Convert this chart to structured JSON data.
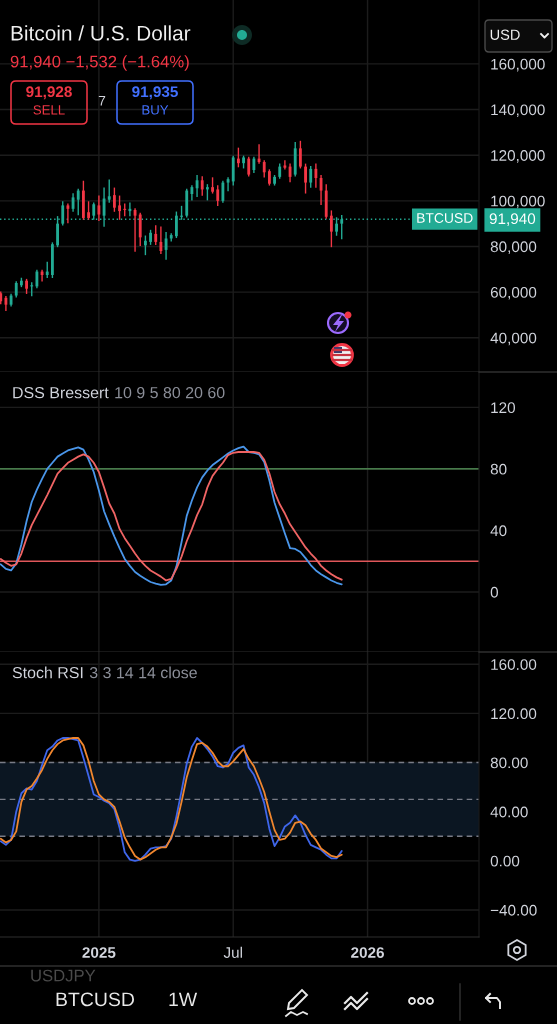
{
  "chart_data": [
    {
      "type": "candlestick",
      "title": "Bitcoin / U.S. Dollar",
      "subtitle": "91,940 −1,532 (−1.64%)",
      "x": [
        "2024-08-26",
        "2024-09-02",
        "2024-09-09",
        "2024-09-16",
        "2024-09-23",
        "2024-09-30",
        "2024-10-07",
        "2024-10-14",
        "2024-10-21",
        "2024-10-28",
        "2024-11-04",
        "2024-11-11",
        "2024-11-18",
        "2024-11-25",
        "2024-12-02",
        "2024-12-09",
        "2024-12-16",
        "2024-12-23",
        "2024-12-30",
        "2025-01-06",
        "2025-01-13",
        "2025-01-20",
        "2025-01-27",
        "2025-02-03",
        "2025-02-10",
        "2025-02-17",
        "2025-02-24",
        "2025-03-03",
        "2025-03-10",
        "2025-03-17",
        "2025-03-24",
        "2025-03-31",
        "2025-04-07",
        "2025-04-14",
        "2025-04-21",
        "2025-04-28",
        "2025-05-05",
        "2025-05-12",
        "2025-05-19",
        "2025-05-26",
        "2025-06-02",
        "2025-06-09",
        "2025-06-16",
        "2025-06-23",
        "2025-06-30",
        "2025-07-07",
        "2025-07-14",
        "2025-07-21",
        "2025-07-28",
        "2025-08-04",
        "2025-08-11",
        "2025-08-18",
        "2025-08-25",
        "2025-09-01",
        "2025-09-08",
        "2025-09-15",
        "2025-09-22",
        "2025-09-29",
        "2025-10-06",
        "2025-10-13",
        "2025-10-20",
        "2025-10-27",
        "2025-11-03",
        "2025-11-10",
        "2025-11-17",
        "2025-11-24",
        "2025-12-01"
      ],
      "ohlc": [
        [
          59500,
          60000,
          55000,
          56000
        ],
        [
          57500,
          58000,
          52000,
          54500
        ],
        [
          54500,
          59000,
          54000,
          58500
        ],
        [
          58500,
          64500,
          58000,
          64000
        ],
        [
          63000,
          66000,
          62500,
          65000
        ],
        [
          65000,
          65500,
          59500,
          61500
        ],
        [
          62500,
          64000,
          58500,
          63000
        ],
        [
          62500,
          69500,
          62000,
          69000
        ],
        [
          69000,
          69500,
          65000,
          67500
        ],
        [
          67500,
          73000,
          66500,
          69000
        ],
        [
          67500,
          81500,
          66500,
          81000
        ],
        [
          80500,
          93000,
          80000,
          90000
        ],
        [
          90000,
          99500,
          89500,
          98000
        ],
        [
          98000,
          98500,
          90500,
          96500
        ],
        [
          96500,
          103000,
          95500,
          101500
        ],
        [
          100500,
          105000,
          94000,
          104500
        ],
        [
          104500,
          108500,
          92000,
          92500
        ],
        [
          95000,
          99500,
          92000,
          92500
        ],
        [
          93500,
          99000,
          92000,
          98500
        ],
        [
          98000,
          102000,
          91500,
          94000
        ],
        [
          93500,
          105500,
          89000,
          101000
        ],
        [
          100500,
          109000,
          99500,
          102000
        ],
        [
          102500,
          105500,
          95500,
          97000
        ],
        [
          98000,
          102000,
          92000,
          95500
        ],
        [
          96500,
          98500,
          93500,
          96000
        ],
        [
          95500,
          99000,
          93500,
          96500
        ],
        [
          96000,
          96500,
          78000,
          93500
        ],
        [
          94000,
          94500,
          80500,
          84000
        ],
        [
          80500,
          84500,
          76500,
          82500
        ],
        [
          82000,
          87000,
          81000,
          86000
        ],
        [
          85500,
          89000,
          81000,
          82000
        ],
        [
          82000,
          88500,
          77000,
          78000
        ],
        [
          78500,
          86000,
          74500,
          83500
        ],
        [
          83500,
          85500,
          82500,
          85000
        ],
        [
          84500,
          95000,
          84000,
          93500
        ],
        [
          93000,
          97500,
          92000,
          93500
        ],
        [
          93500,
          105000,
          93000,
          104500
        ],
        [
          103000,
          106500,
          100500,
          106000
        ],
        [
          105500,
          111000,
          102000,
          109000
        ],
        [
          109000,
          110500,
          102500,
          105000
        ],
        [
          105000,
          107000,
          100500,
          106000
        ],
        [
          106000,
          110000,
          103500,
          104000
        ],
        [
          105000,
          106500,
          98000,
          100000
        ],
        [
          100000,
          108500,
          99500,
          108000
        ],
        [
          108000,
          110000,
          104500,
          109500
        ],
        [
          108500,
          119500,
          107000,
          119000
        ],
        [
          118500,
          123000,
          115000,
          116500
        ],
        [
          116500,
          119500,
          114500,
          119000
        ],
        [
          118500,
          119000,
          111000,
          111500
        ],
        [
          113500,
          119000,
          112500,
          118500
        ],
        [
          118500,
          124500,
          116500,
          117000
        ],
        [
          117000,
          117500,
          110500,
          112500
        ],
        [
          113000,
          113500,
          107000,
          107500
        ],
        [
          107500,
          111000,
          107000,
          110500
        ],
        [
          110500,
          116000,
          110000,
          115000
        ],
        [
          115500,
          117500,
          114000,
          114500
        ],
        [
          115000,
          116000,
          108500,
          110500
        ],
        [
          111500,
          125500,
          111000,
          123000
        ],
        [
          123000,
          126000,
          114500,
          115000
        ],
        [
          115000,
          116000,
          103500,
          108000
        ],
        [
          108000,
          115000,
          106000,
          114000
        ],
        [
          114000,
          116000,
          106000,
          110000
        ],
        [
          110000,
          111000,
          98500,
          104500
        ],
        [
          104500,
          107000,
          92500,
          93000
        ],
        [
          93500,
          95500,
          80000,
          86500
        ],
        [
          86500,
          92500,
          85000,
          90000
        ],
        [
          90000,
          93500,
          83500,
          91940
        ]
      ],
      "xlim": [
        "2024-08-25",
        "2026-06-05"
      ],
      "xticks": [
        {
          "value": "2025-01-06",
          "label": null
        },
        {
          "value": "2025-07-07",
          "label": null
        },
        {
          "value": "2026-01-05",
          "label": null
        }
      ],
      "ylim": [
        25000,
        188000
      ],
      "yticks": [
        {
          "value": 40000,
          "label": "40,000"
        },
        {
          "value": 60000,
          "label": "60,000"
        },
        {
          "value": 80000,
          "label": "80,000"
        },
        {
          "value": 100000,
          "label": "100,000"
        },
        {
          "value": 120000,
          "label": "120,000"
        },
        {
          "value": 140000,
          "label": "140,000"
        },
        {
          "value": 160000,
          "label": "160,000"
        }
      ],
      "grid": true,
      "tick_labels": "y",
      "ref_lines": [
        {
          "axis": "y",
          "value": 91940,
          "label": "BTCUSD",
          "color": "#22ab94",
          "line_style": "dotted"
        }
      ],
      "annotations": [
        "91,928",
        "SELL",
        "7",
        "91,935",
        "BUY",
        "USD",
        "91,940"
      ]
    },
    {
      "type": "line",
      "title": "DSS Bressert",
      "subtitle": "10 9 5 80 20 60",
      "x": [
        "2024-08-26",
        "2024-09-02",
        "2024-09-09",
        "2024-09-16",
        "2024-09-23",
        "2024-09-30",
        "2024-10-07",
        "2024-10-14",
        "2024-10-21",
        "2024-10-28",
        "2024-11-04",
        "2024-11-11",
        "2024-11-18",
        "2024-11-25",
        "2024-12-02",
        "2024-12-09",
        "2024-12-16",
        "2024-12-23",
        "2024-12-30",
        "2025-01-06",
        "2025-01-13",
        "2025-01-20",
        "2025-01-27",
        "2025-02-03",
        "2025-02-10",
        "2025-02-17",
        "2025-02-24",
        "2025-03-03",
        "2025-03-10",
        "2025-03-17",
        "2025-03-24",
        "2025-03-31",
        "2025-04-07",
        "2025-04-14",
        "2025-04-21",
        "2025-04-28",
        "2025-05-05",
        "2025-05-12",
        "2025-05-19",
        "2025-05-26",
        "2025-06-02",
        "2025-06-09",
        "2025-06-16",
        "2025-06-23",
        "2025-06-30",
        "2025-07-07",
        "2025-07-14",
        "2025-07-21",
        "2025-07-28",
        "2025-08-04",
        "2025-08-11",
        "2025-08-18",
        "2025-08-25",
        "2025-09-01",
        "2025-09-08",
        "2025-09-15",
        "2025-09-22",
        "2025-09-29",
        "2025-10-06",
        "2025-10-13",
        "2025-10-20",
        "2025-10-27",
        "2025-11-03",
        "2025-11-10",
        "2025-11-17",
        "2025-11-24",
        "2025-12-01"
      ],
      "series": [
        {
          "color": "#4a96ea",
          "values": [
            18,
            15,
            14,
            18.5,
            31,
            46,
            58.5,
            66.5,
            73.5,
            80,
            84,
            88,
            90,
            92,
            93,
            94,
            92.5,
            86,
            78,
            66,
            52.5,
            44,
            36,
            28.5,
            21.5,
            17,
            13,
            10.5,
            8.5,
            6.5,
            5.5,
            4.6,
            5,
            7.5,
            16.5,
            32.5,
            49.5,
            59.5,
            68,
            74.5,
            79,
            82.5,
            85,
            87.5,
            90,
            92,
            93.5,
            94.5,
            91,
            90.5,
            89.5,
            84.5,
            72.5,
            58,
            48,
            38,
            28.5,
            28,
            26,
            22,
            17.5,
            14,
            11.5,
            9.5,
            7.5,
            6,
            5
          ]
        },
        {
          "color": "#f06464",
          "values": [
            21.5,
            19,
            17,
            18,
            25,
            35,
            43.5,
            50,
            56.5,
            63,
            70,
            77,
            80.5,
            84,
            86,
            88,
            89.5,
            88,
            84,
            78,
            68,
            57.5,
            51,
            41,
            35,
            30,
            25,
            20.5,
            17,
            14,
            12,
            10,
            7.5,
            8.5,
            15,
            23,
            33,
            41,
            50,
            57,
            68,
            75.5,
            80,
            84,
            89,
            90.5,
            91,
            91,
            91,
            91,
            90.5,
            86,
            77,
            65,
            57,
            51,
            44,
            39,
            34,
            29,
            25,
            21.5,
            17,
            14,
            11.5,
            9.5,
            8
          ]
        }
      ],
      "xlim": [
        "2024-08-25",
        "2026-06-05"
      ],
      "xticks": [
        {
          "value": "2025-01-06",
          "label": null
        },
        {
          "value": "2025-07-07",
          "label": null
        },
        {
          "value": "2026-01-05",
          "label": null
        }
      ],
      "ylim": [
        -39,
        143
      ],
      "yticks": [
        0,
        40,
        80,
        120
      ],
      "grid": true,
      "tick_labels": "y",
      "ref_lines": [
        {
          "axis": "y",
          "value": 80,
          "color": "#5a9e5e"
        },
        {
          "axis": "y",
          "value": 20,
          "color": "#e0575a"
        }
      ]
    },
    {
      "type": "line",
      "title": "Stoch RSI",
      "subtitle": "3 3 14 14 close",
      "x": [
        "2024-08-26",
        "2024-09-02",
        "2024-09-09",
        "2024-09-16",
        "2024-09-23",
        "2024-09-30",
        "2024-10-07",
        "2024-10-14",
        "2024-10-21",
        "2024-10-28",
        "2024-11-04",
        "2024-11-11",
        "2024-11-18",
        "2024-11-25",
        "2024-12-02",
        "2024-12-09",
        "2024-12-16",
        "2024-12-23",
        "2024-12-30",
        "2025-01-06",
        "2025-01-13",
        "2025-01-20",
        "2025-01-27",
        "2025-02-03",
        "2025-02-10",
        "2025-02-17",
        "2025-02-24",
        "2025-03-03",
        "2025-03-10",
        "2025-03-17",
        "2025-03-24",
        "2025-03-31",
        "2025-04-07",
        "2025-04-14",
        "2025-04-21",
        "2025-04-28",
        "2025-05-05",
        "2025-05-12",
        "2025-05-19",
        "2025-05-26",
        "2025-06-02",
        "2025-06-09",
        "2025-06-16",
        "2025-06-23",
        "2025-06-30",
        "2025-07-07",
        "2025-07-14",
        "2025-07-21",
        "2025-07-28",
        "2025-08-04",
        "2025-08-11",
        "2025-08-18",
        "2025-08-25",
        "2025-09-01",
        "2025-09-08",
        "2025-09-15",
        "2025-09-22",
        "2025-09-29",
        "2025-10-06",
        "2025-10-13",
        "2025-10-20",
        "2025-10-27",
        "2025-11-03",
        "2025-11-10",
        "2025-11-17",
        "2025-11-24",
        "2025-12-01"
      ],
      "series": [
        {
          "color": "#3f66ea",
          "values": [
            16,
            13,
            17,
            40,
            55,
            59,
            58,
            65,
            78,
            90,
            93,
            98,
            100,
            100,
            99,
            98,
            84,
            69,
            54,
            52,
            49,
            47,
            42,
            27,
            7,
            1,
            0,
            1,
            5,
            10,
            11,
            11,
            12,
            18,
            36,
            57,
            79,
            93,
            100,
            96,
            91,
            85,
            77,
            76,
            79,
            88,
            92,
            94,
            76,
            70,
            60,
            47,
            26,
            12,
            19,
            28,
            31,
            37,
            31,
            21,
            13,
            11,
            9,
            5,
            2,
            2,
            8
          ]
        },
        {
          "color": "#f0862e",
          "values": [
            18,
            15,
            17,
            24,
            48,
            58,
            61,
            67,
            74,
            83,
            90,
            95,
            98,
            99,
            100,
            100,
            94,
            81,
            65,
            54,
            50,
            48,
            44,
            32,
            19,
            11,
            4,
            1,
            3,
            6,
            9,
            11,
            11,
            19,
            30,
            48,
            68,
            82,
            95,
            96,
            93,
            88,
            81,
            77,
            77,
            81,
            86,
            91,
            83,
            77,
            67,
            56,
            40,
            25,
            17,
            18,
            23,
            31,
            32,
            29,
            22,
            17,
            10,
            7,
            4,
            3,
            5
          ]
        }
      ],
      "xlim": [
        "2024-08-25",
        "2026-06-05"
      ],
      "xticks": [
        {
          "value": "2025-01-06",
          "label": "2025"
        },
        {
          "value": "2025-07-07",
          "label": "Jul"
        },
        {
          "value": "2026-01-05",
          "label": "2026"
        }
      ],
      "ylim": [
        -62,
        170
      ],
      "yticks": [
        {
          "value": 160,
          "label": "160.00"
        },
        {
          "value": 120,
          "label": "120.00"
        },
        {
          "value": 80,
          "label": "80.00"
        },
        {
          "value": 40,
          "label": "40.00"
        },
        {
          "value": 0,
          "label": "0.00"
        },
        {
          "value": -40,
          "label": "−40.00"
        }
      ],
      "grid": true,
      "bands": [
        {
          "axis": "y",
          "from": 20,
          "to": 80,
          "color": "#0b1622"
        }
      ],
      "ref_lines": [
        {
          "axis": "y",
          "value": 80,
          "color": "#787b86",
          "line_style": "dashed"
        },
        {
          "axis": "y",
          "value": 50,
          "color": "#787b86",
          "line_style": "dashed"
        },
        {
          "axis": "y",
          "value": 20,
          "color": "#787b86",
          "line_style": "dashed"
        }
      ],
      "annotations": [
        "USDJPY",
        "BTCUSD",
        "1W"
      ]
    }
  ]
}
